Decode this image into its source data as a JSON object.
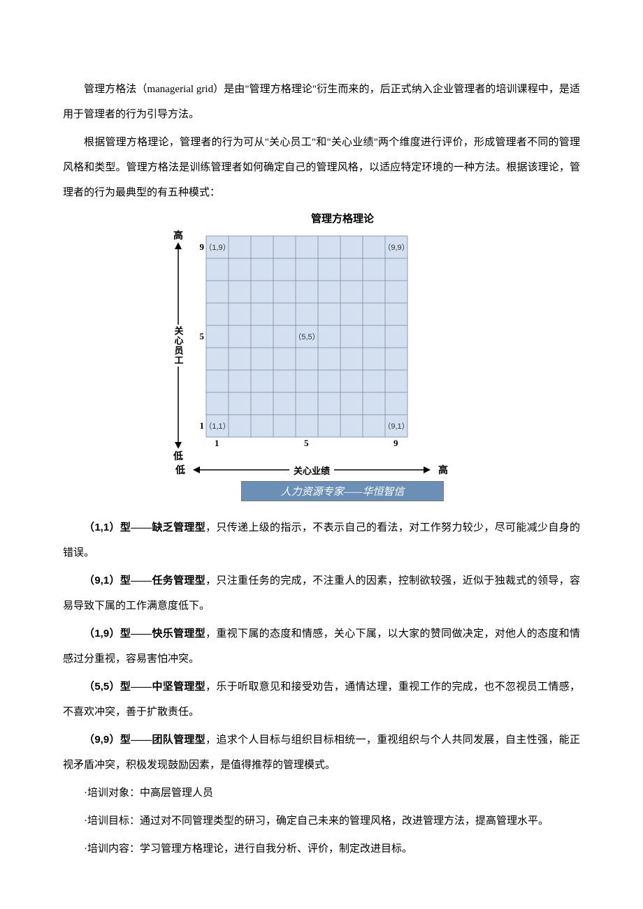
{
  "intro": {
    "p1": "管理方格法（managerial grid）是由\"管理方格理论\"衍生而来的，后正式纳入企业管理者的培训课程中，是适用于管理者的行为引导方法。",
    "p2": "根据管理方格理论，管理者的行为可从\"关心员工\"和\"关心业绩\"两个维度进行评价，形成管理者不同的管理风格和类型。管理方格法是训练管理者如何确定自己的管理风格，以适应特定环境的一种方法。根据该理论，管理者的行为最典型的有五种模式："
  },
  "chart": {
    "title": "管理方格理论",
    "y_axis_label": "关心员工",
    "x_axis_label": "关心业绩",
    "high_label": "高",
    "low_label": "低",
    "grid_size": 9,
    "cell_size": 32,
    "grid_fill": "#d4e0ef",
    "grid_stroke": "#8a9bb0",
    "grid_stroke_width": 1,
    "axis_color": "#000000",
    "ticks": [
      {
        "value": "1",
        "pos": 0
      },
      {
        "value": "5",
        "pos": 4
      },
      {
        "value": "9",
        "pos": 8
      }
    ],
    "points": [
      {
        "label": "（1,9）",
        "col": 0,
        "row": 0
      },
      {
        "label": "（9,9）",
        "col": 8,
        "row": 0
      },
      {
        "label": "（5,5）",
        "col": 4,
        "row": 4
      },
      {
        "label": "（1,1）",
        "col": 0,
        "row": 8
      },
      {
        "label": "（9,1）",
        "col": 8,
        "row": 8
      }
    ],
    "footer": "人力资源专家——华恒智信"
  },
  "types": [
    {
      "code": "（1,1）",
      "name": "型——缺乏管理型",
      "desc": "，只传递上级的指示，不表示自己的看法，对工作努力较少，尽可能减少自身的错误。"
    },
    {
      "code": "（9,1）",
      "name": "型——任务管理型",
      "desc": "，只注重任务的完成，不注重人的因素，控制欲较强，近似于独裁式的领导，容易导致下属的工作满意度低下。"
    },
    {
      "code": "（1,9）",
      "name": "型——快乐管理型",
      "desc": "，重视下属的态度和情感，关心下属，以大家的赞同做决定，对他人的态度和情感过分重视，容易害怕冲突。"
    },
    {
      "code": "（5,5）",
      "name": "型——中坚管理型",
      "desc": "，乐于听取意见和接受劝告，通情达理，重视工作的完成，也不忽视员工情感，不喜欢冲突，善于扩散责任。"
    },
    {
      "code": "（9,9）",
      "name": "型——团队管理型",
      "desc": "，追求个人目标与组织目标相统一，重视组织与个人共同发展，自主性强，能正视矛盾冲突，积极发现鼓励因素，是值得推荐的管理模式。"
    }
  ],
  "training": {
    "target_label": "·培训对象：",
    "target": "中高层管理人员",
    "goal_label": "·培训目标：",
    "goal": "通过对不同管理类型的研习，确定自己未来的管理风格，改进管理方法，提高管理水平。",
    "content_label": "·培训内容：",
    "content": "学习管理方格理论，进行自我分析、评价，制定改进目标。"
  }
}
